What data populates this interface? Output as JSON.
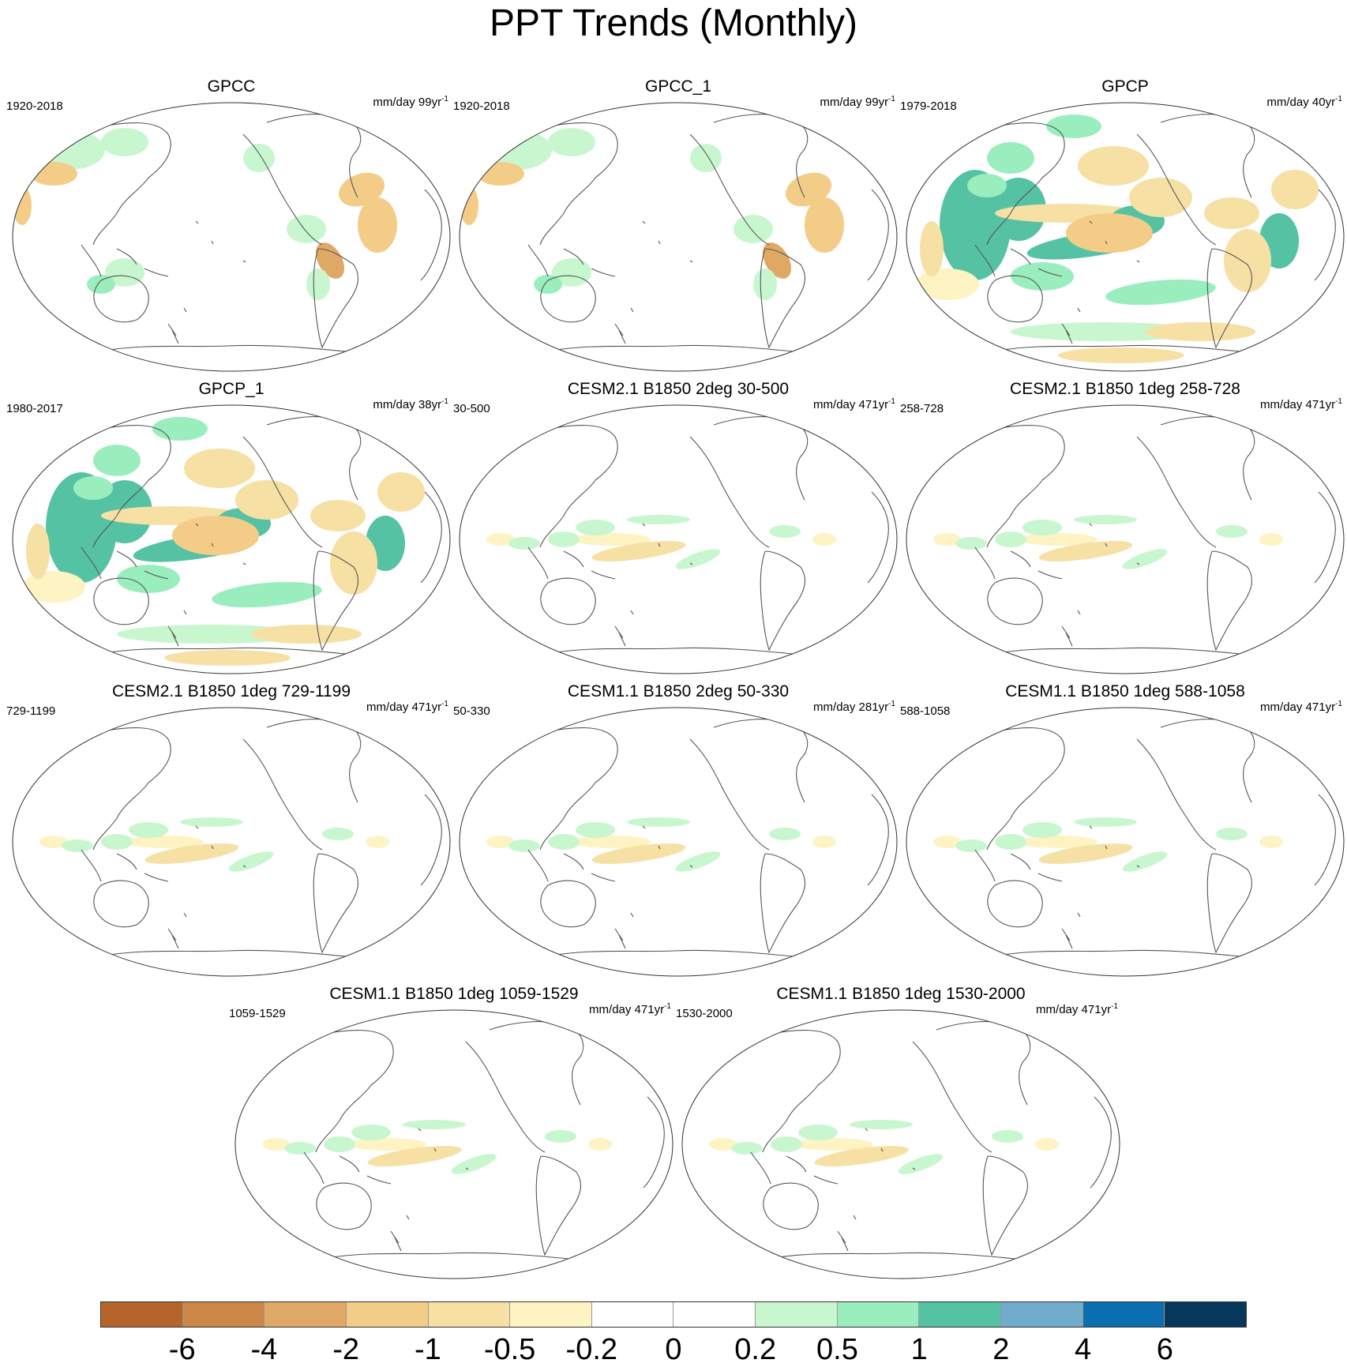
{
  "title": "PPT Trends (Monthly)",
  "panels": [
    {
      "title": "GPCC",
      "period": "1920-2018",
      "units": "mm/day 99yr",
      "units_sup": "-1",
      "intensity": "land-only"
    },
    {
      "title": "GPCC_1",
      "period": "1920-2018",
      "units": "mm/day 99yr",
      "units_sup": "-1",
      "intensity": "land-only"
    },
    {
      "title": "GPCP",
      "period": "1979-2018",
      "units": "mm/day 40yr",
      "units_sup": "-1",
      "intensity": "strong"
    },
    {
      "title": "GPCP_1",
      "period": "1980-2017",
      "units": "mm/day 38yr",
      "units_sup": "-1",
      "intensity": "strong"
    },
    {
      "title": "CESM2.1 B1850 2deg 30-500",
      "period": "30-500",
      "units": "mm/day 471yr",
      "units_sup": "-1",
      "intensity": "weak"
    },
    {
      "title": "CESM2.1 B1850 1deg 258-728",
      "period": "258-728",
      "units": "mm/day 471yr",
      "units_sup": "-1",
      "intensity": "weak"
    },
    {
      "title": "CESM2.1 B1850 1deg 729-1199",
      "period": "729-1199",
      "units": "mm/day 471yr",
      "units_sup": "-1",
      "intensity": "weak"
    },
    {
      "title": "CESM1.1 B1850 2deg 50-330",
      "period": "50-330",
      "units": "mm/day 281yr",
      "units_sup": "-1",
      "intensity": "weak"
    },
    {
      "title": "CESM1.1 B1850 1deg 588-1058",
      "period": "588-1058",
      "units": "mm/day 471yr",
      "units_sup": "-1",
      "intensity": "weak"
    },
    {
      "title": "CESM1.1 B1850 1deg 1059-1529",
      "period": "1059-1529",
      "units": "mm/day 471yr",
      "units_sup": "-1",
      "intensity": "weak"
    },
    {
      "title": "CESM1.1 B1850 1deg 1530-2000",
      "period": "1530-2000",
      "units": "mm/day 471yr",
      "units_sup": "-1",
      "intensity": "weak"
    }
  ],
  "colorbar": {
    "colors": [
      "#b5652a",
      "#cc8645",
      "#e0a865",
      "#f3cd88",
      "#f6e0a4",
      "#fdf3c3",
      "#ffffff",
      "#ffffff",
      "#c8f7cf",
      "#9aeebd",
      "#55c2a3",
      "#72accc",
      "#0a6eaf",
      "#07385c"
    ],
    "labels": [
      "-6",
      "-4",
      "-2",
      "-1",
      "-0.5",
      "-0.2",
      "0",
      "0.2",
      "0.5",
      "1",
      "2",
      "4",
      "6"
    ]
  }
}
